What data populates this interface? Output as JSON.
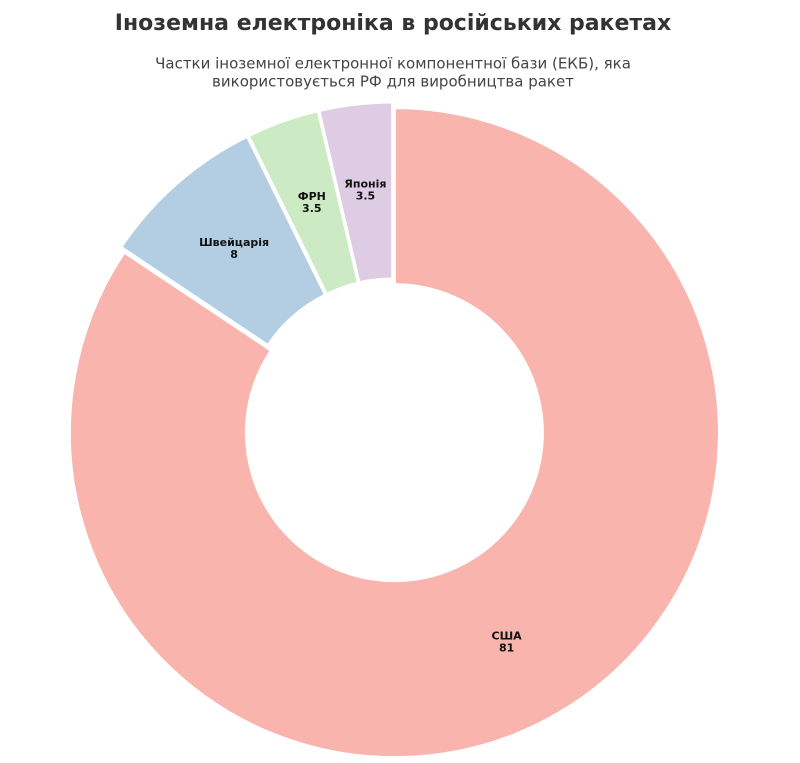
{
  "chart_data": {
    "type": "pie",
    "title": "Іноземна електроніка в російських ракетах",
    "subtitle": [
      "Частки іноземної електронної компонентної бази (ЕКБ), яка",
      "використовується РФ для виробництва ракет"
    ],
    "categories": [
      "США",
      "Швейцарія",
      "ФРН",
      "Японія"
    ],
    "values": [
      81,
      8,
      3.5,
      3.5
    ],
    "colors": [
      "#f9b4ae",
      "#b3cde3",
      "#ccebc5",
      "#decbe4"
    ]
  }
}
